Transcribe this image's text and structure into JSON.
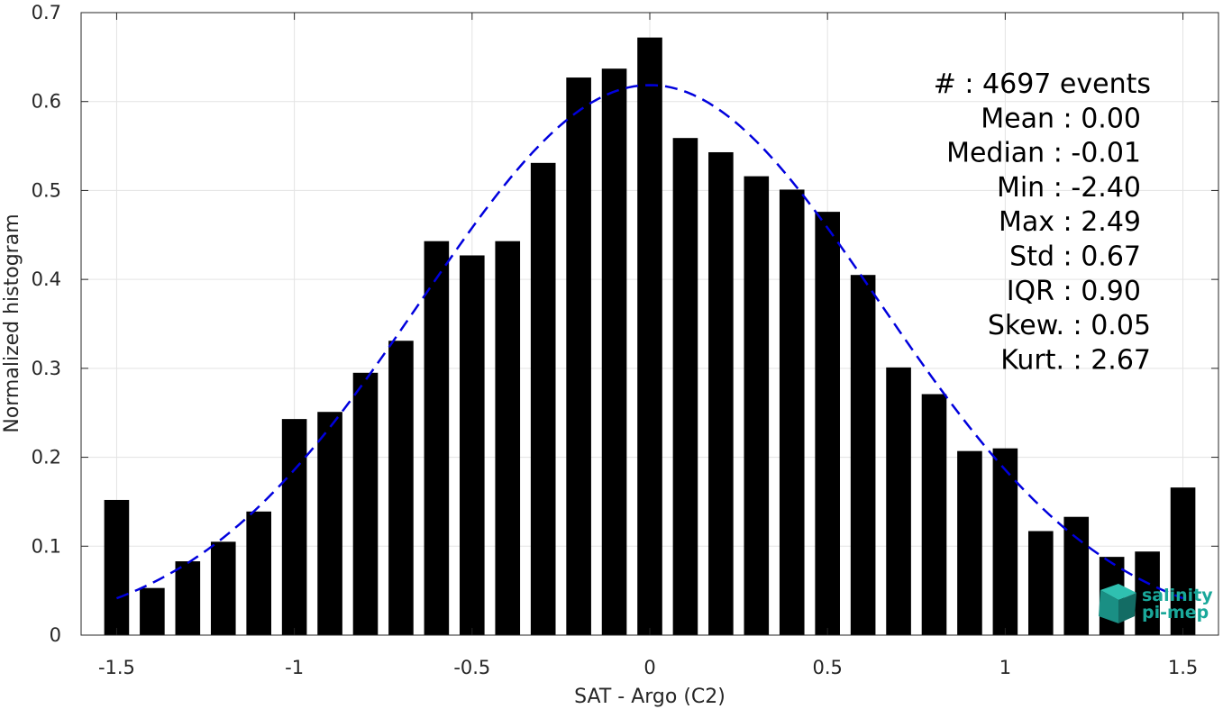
{
  "chart_data": {
    "type": "bar",
    "xlabel": "SAT - Argo (C2)",
    "ylabel": "Normalized histogram",
    "xlim": [
      -1.6,
      1.6
    ],
    "ylim": [
      0,
      0.7
    ],
    "xticks": [
      -1.5,
      -1,
      -0.5,
      0,
      0.5,
      1,
      1.5
    ],
    "xtick_labels": [
      "-1.5",
      "-1",
      "-0.5",
      "0",
      "0.5",
      "1",
      "1.5"
    ],
    "yticks": [
      0,
      0.1,
      0.2,
      0.3,
      0.4,
      0.5,
      0.6,
      0.7
    ],
    "ytick_labels": [
      "0",
      "0.1",
      "0.2",
      "0.3",
      "0.4",
      "0.5",
      "0.6",
      "0.7"
    ],
    "grid": true,
    "bar_color": "#000000",
    "bins": [
      {
        "x": -1.5,
        "y": 0.152
      },
      {
        "x": -1.4,
        "y": 0.053
      },
      {
        "x": -1.3,
        "y": 0.083
      },
      {
        "x": -1.2,
        "y": 0.105
      },
      {
        "x": -1.1,
        "y": 0.139
      },
      {
        "x": -1.0,
        "y": 0.243
      },
      {
        "x": -0.9,
        "y": 0.251
      },
      {
        "x": -0.8,
        "y": 0.295
      },
      {
        "x": -0.7,
        "y": 0.331
      },
      {
        "x": -0.6,
        "y": 0.443
      },
      {
        "x": -0.5,
        "y": 0.427
      },
      {
        "x": -0.4,
        "y": 0.443
      },
      {
        "x": -0.3,
        "y": 0.531
      },
      {
        "x": -0.2,
        "y": 0.627
      },
      {
        "x": -0.1,
        "y": 0.637
      },
      {
        "x": 0.0,
        "y": 0.672
      },
      {
        "x": 0.1,
        "y": 0.559
      },
      {
        "x": 0.2,
        "y": 0.543
      },
      {
        "x": 0.3,
        "y": 0.516
      },
      {
        "x": 0.4,
        "y": 0.501
      },
      {
        "x": 0.5,
        "y": 0.476
      },
      {
        "x": 0.6,
        "y": 0.405
      },
      {
        "x": 0.7,
        "y": 0.301
      },
      {
        "x": 0.8,
        "y": 0.271
      },
      {
        "x": 0.9,
        "y": 0.207
      },
      {
        "x": 1.0,
        "y": 0.21
      },
      {
        "x": 1.1,
        "y": 0.117
      },
      {
        "x": 1.2,
        "y": 0.133
      },
      {
        "x": 1.3,
        "y": 0.088
      },
      {
        "x": 1.4,
        "y": 0.094
      },
      {
        "x": 1.5,
        "y": 0.166
      }
    ],
    "fit_curve": {
      "style": "dashed",
      "color": "#0000dd",
      "mean": 0.0,
      "std": 0.645,
      "x_range": [
        -1.5,
        1.5
      ]
    },
    "stats": [
      {
        "label": "#",
        "value": "4697 events"
      },
      {
        "label": "Mean",
        "value": "0.00"
      },
      {
        "label": "Median",
        "value": "-0.01"
      },
      {
        "label": "Min",
        "value": "-2.40"
      },
      {
        "label": "Max",
        "value": "2.49"
      },
      {
        "label": "Std",
        "value": "0.67"
      },
      {
        "label": "IQR",
        "value": "0.90"
      },
      {
        "label": "Skew.",
        "value": "0.05"
      },
      {
        "label": "Kurt.",
        "value": "2.67"
      }
    ],
    "stat_lines": [
      "#  : 4697 events",
      "Mean : 0.00",
      "Median : -0.01",
      "Min : -2.40",
      "Max : 2.49",
      "Std : 0.67",
      "IQR : 0.90",
      "Skew. : 0.05",
      "Kurt. : 2.67"
    ]
  },
  "logo": {
    "line1": "salinity",
    "line2": "pi-mep",
    "color": "#1aa89a"
  }
}
